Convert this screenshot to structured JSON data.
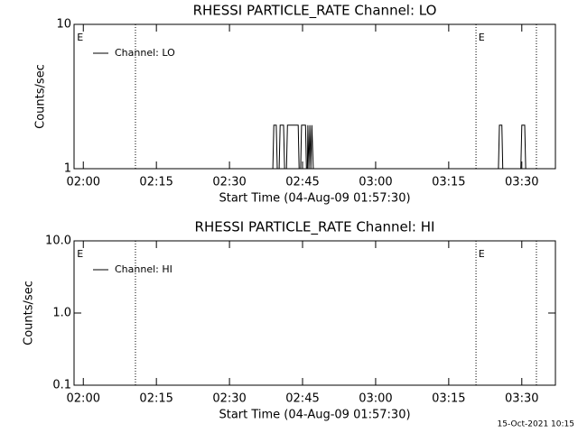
{
  "chart_data": [
    {
      "type": "line",
      "title": "RHESSI PARTICLE_RATE Channel: LO",
      "xlabel": "Start Time (04-Aug-09 01:57:30)",
      "ylabel": "Counts/sec",
      "log_y": true,
      "xlim": [
        118.1,
        216.9
      ],
      "ylim": [
        1,
        10
      ],
      "xticks": [
        {
          "value": 120,
          "label": "02:00"
        },
        {
          "value": 135,
          "label": "02:15"
        },
        {
          "value": 150,
          "label": "02:30"
        },
        {
          "value": 165,
          "label": "02:45"
        },
        {
          "value": 180,
          "label": "03:00"
        },
        {
          "value": 195,
          "label": "03:15"
        },
        {
          "value": 210,
          "label": "03:30"
        }
      ],
      "yticks": [
        1,
        10
      ],
      "vlines": [
        130.7,
        200.6,
        213.0
      ],
      "annotations": [
        {
          "text": "E",
          "x": 118.7
        },
        {
          "text": "E",
          "x": 201.1
        }
      ],
      "series": [
        {
          "name": "Channel: LO",
          "color": "#000000",
          "x": [
            120,
            158.9,
            159.1,
            159.6,
            159.8,
            160.2,
            160.4,
            161.1,
            161.3,
            161.7,
            161.9,
            164.1,
            164.3,
            164.6,
            164.8,
            165.6,
            165.8,
            166.0,
            166.1,
            166.3,
            166.5,
            166.7,
            166.9,
            167.2,
            205.2,
            205.4,
            205.9,
            206.1,
            209.8,
            210.0,
            210.6,
            210.8,
            213.3
          ],
          "values": [
            1,
            1,
            2,
            2,
            1,
            1,
            2,
            2,
            1,
            1,
            2,
            2,
            1,
            1,
            2,
            2,
            1,
            1,
            2,
            1,
            2,
            1,
            2,
            1,
            1,
            2,
            2,
            1,
            1,
            2,
            2,
            1,
            1
          ]
        }
      ]
    },
    {
      "type": "line",
      "title": "RHESSI PARTICLE_RATE Channel: HI",
      "xlabel": "Start Time (04-Aug-09 01:57:30)",
      "ylabel": "Counts/sec",
      "log_y": true,
      "xlim": [
        118.1,
        216.9
      ],
      "ylim": [
        0.1,
        10
      ],
      "xticks": [
        {
          "value": 120,
          "label": "02:00"
        },
        {
          "value": 135,
          "label": "02:15"
        },
        {
          "value": 150,
          "label": "02:30"
        },
        {
          "value": 165,
          "label": "02:45"
        },
        {
          "value": 180,
          "label": "03:00"
        },
        {
          "value": 195,
          "label": "03:15"
        },
        {
          "value": 210,
          "label": "03:30"
        }
      ],
      "yticks": [
        0.1,
        {
          "value": 1,
          "label": "1.0"
        },
        {
          "value": 10,
          "label": "10.0"
        }
      ],
      "vlines": [
        130.7,
        200.6,
        213.0
      ],
      "annotations": [
        {
          "text": "E",
          "x": 118.7
        },
        {
          "text": "E",
          "x": 201.1
        }
      ],
      "series": [
        {
          "name": "Channel: HI",
          "color": "#000000",
          "x": [],
          "values": []
        }
      ]
    }
  ],
  "footer": "15-Oct-2021 10:15"
}
